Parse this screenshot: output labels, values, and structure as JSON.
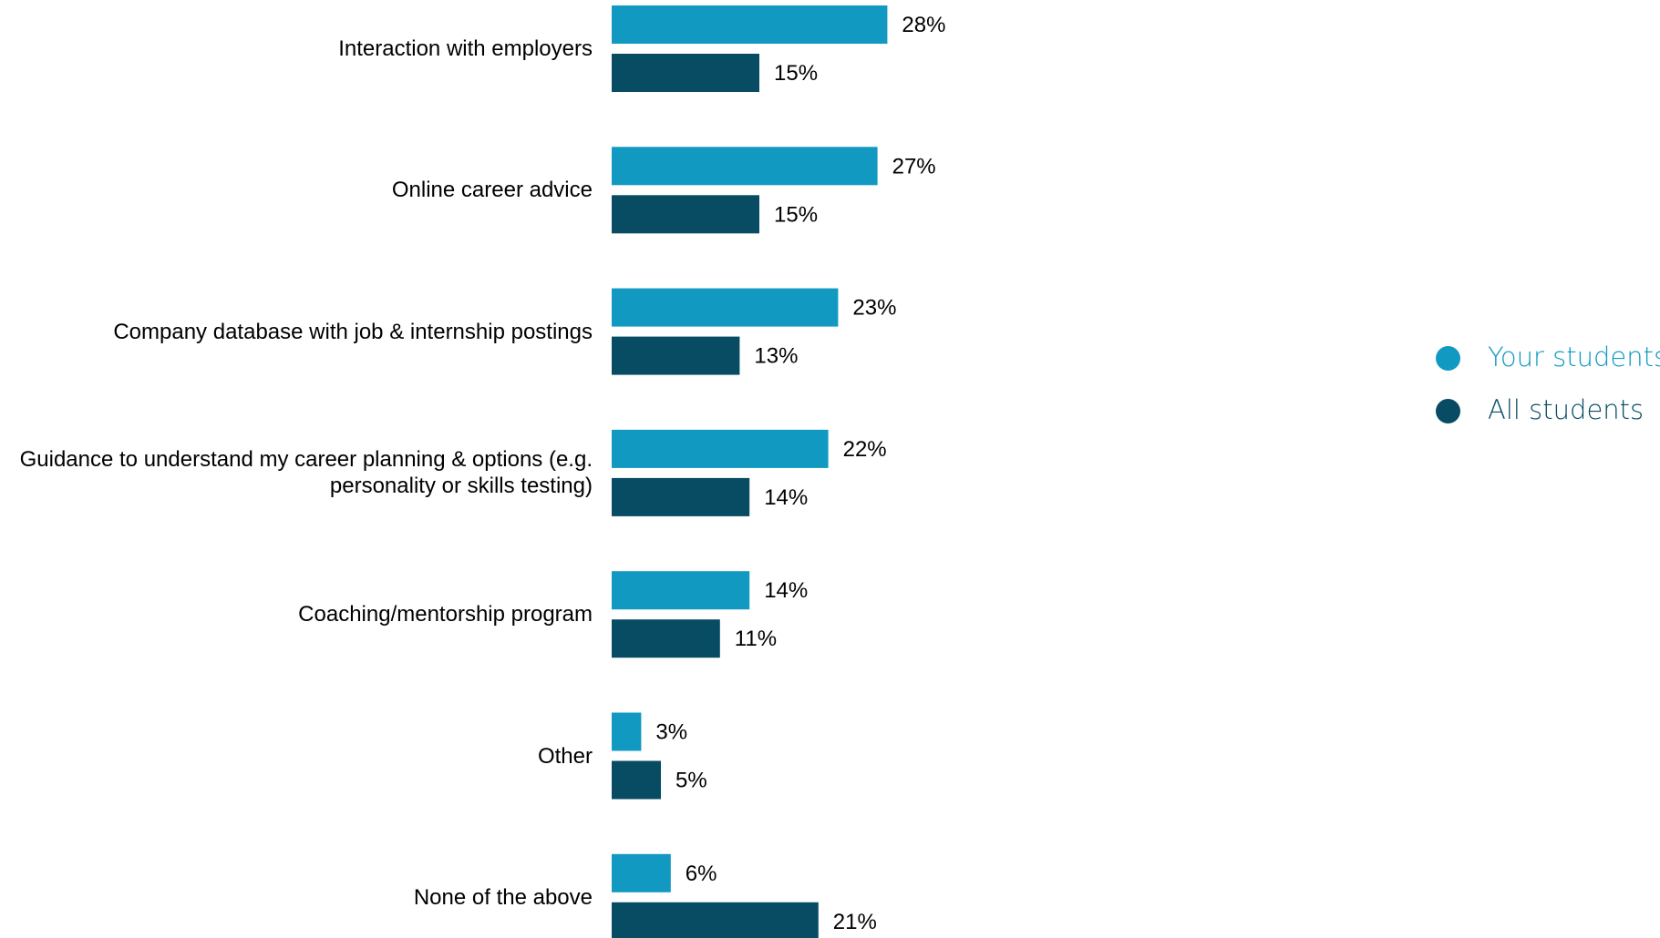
{
  "chart_data": {
    "type": "bar",
    "orientation": "horizontal",
    "categories": [
      "Interaction with employers",
      "Online career advice",
      "Company database with job & internship postings",
      "Guidance to understand my career planning & options (e.g. personality or skills testing)",
      "Coaching/mentorship program",
      "Other",
      "None of the above"
    ],
    "series": [
      {
        "name": "Your students",
        "color": "#1199c2",
        "values": [
          28,
          27,
          23,
          22,
          14,
          3,
          6
        ],
        "labels": [
          "28%",
          "27%",
          "23%",
          "22%",
          "14%",
          "3%",
          "6%"
        ]
      },
      {
        "name": "All students",
        "color": "#074c62",
        "values": [
          15,
          15,
          13,
          14,
          11,
          5,
          21
        ],
        "labels": [
          "15%",
          "15%",
          "13%",
          "14%",
          "11%",
          "5%",
          "21%"
        ]
      }
    ],
    "value_unit": "%",
    "xlim": [
      0,
      100
    ],
    "grid": false,
    "axes_visible": false,
    "legend_position": "right",
    "title": "",
    "xlabel": "",
    "ylabel": ""
  }
}
